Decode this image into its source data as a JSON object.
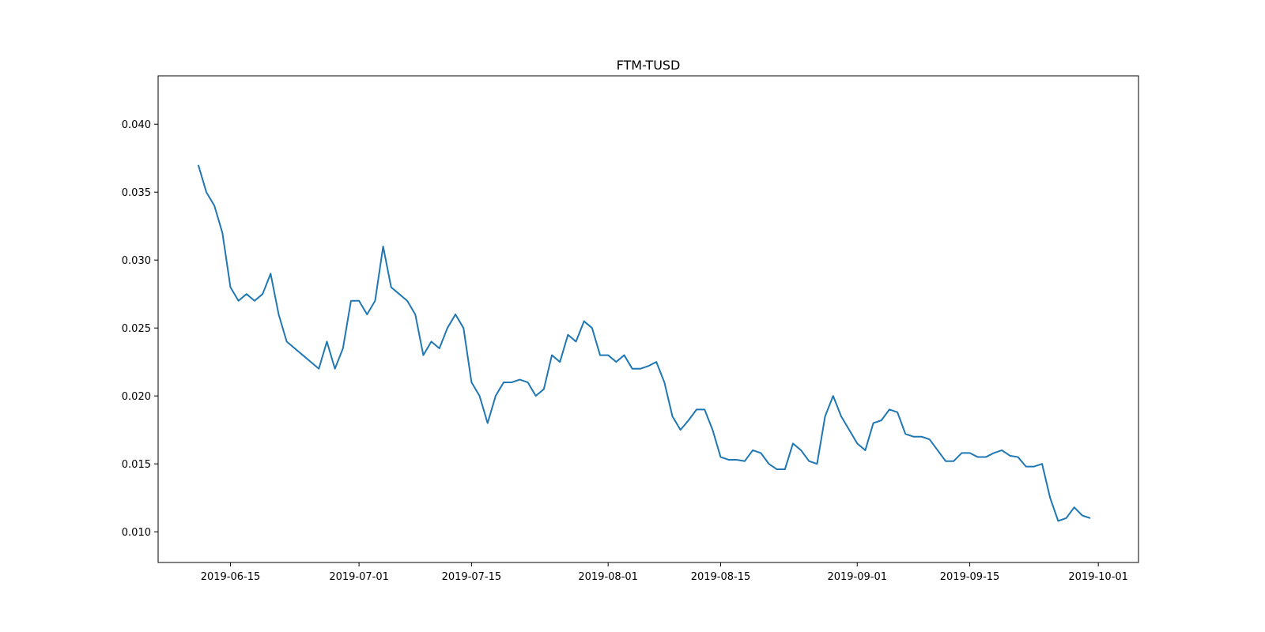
{
  "chart_data": {
    "type": "line",
    "title": "FTM-TUSD",
    "x": [
      "2019-06-11",
      "2019-06-12",
      "2019-06-13",
      "2019-06-14",
      "2019-06-15",
      "2019-06-16",
      "2019-06-17",
      "2019-06-18",
      "2019-06-19",
      "2019-06-20",
      "2019-06-21",
      "2019-06-22",
      "2019-06-23",
      "2019-06-24",
      "2019-06-25",
      "2019-06-26",
      "2019-06-27",
      "2019-06-28",
      "2019-06-29",
      "2019-06-30",
      "2019-07-01",
      "2019-07-02",
      "2019-07-03",
      "2019-07-04",
      "2019-07-05",
      "2019-07-06",
      "2019-07-07",
      "2019-07-08",
      "2019-07-09",
      "2019-07-10",
      "2019-07-11",
      "2019-07-12",
      "2019-07-13",
      "2019-07-14",
      "2019-07-15",
      "2019-07-16",
      "2019-07-17",
      "2019-07-18",
      "2019-07-19",
      "2019-07-20",
      "2019-07-21",
      "2019-07-22",
      "2019-07-23",
      "2019-07-24",
      "2019-07-25",
      "2019-07-26",
      "2019-07-27",
      "2019-07-28",
      "2019-07-29",
      "2019-07-30",
      "2019-07-31",
      "2019-08-01",
      "2019-08-02",
      "2019-08-03",
      "2019-08-04",
      "2019-08-05",
      "2019-08-06",
      "2019-08-07",
      "2019-08-08",
      "2019-08-09",
      "2019-08-10",
      "2019-08-11",
      "2019-08-12",
      "2019-08-13",
      "2019-08-14",
      "2019-08-15",
      "2019-08-16",
      "2019-08-17",
      "2019-08-18",
      "2019-08-19",
      "2019-08-20",
      "2019-08-21",
      "2019-08-22",
      "2019-08-23",
      "2019-08-24",
      "2019-08-25",
      "2019-08-26",
      "2019-08-27",
      "2019-08-28",
      "2019-08-29",
      "2019-08-30",
      "2019-08-31",
      "2019-09-01",
      "2019-09-02",
      "2019-09-03",
      "2019-09-04",
      "2019-09-05",
      "2019-09-06",
      "2019-09-07",
      "2019-09-08",
      "2019-09-09",
      "2019-09-10",
      "2019-09-11",
      "2019-09-12",
      "2019-09-13",
      "2019-09-14",
      "2019-09-15",
      "2019-09-16",
      "2019-09-17",
      "2019-09-18",
      "2019-09-19",
      "2019-09-20",
      "2019-09-21",
      "2019-09-22",
      "2019-09-23",
      "2019-09-24",
      "2019-09-25",
      "2019-09-26",
      "2019-09-27",
      "2019-09-28",
      "2019-09-29",
      "2019-09-30"
    ],
    "series": [
      {
        "name": "FTM-TUSD",
        "color": "#1f77b4",
        "values": [
          0.037,
          0.035,
          0.034,
          0.032,
          0.028,
          0.027,
          0.0275,
          0.027,
          0.0275,
          0.029,
          0.026,
          0.024,
          0.0235,
          0.023,
          0.0225,
          0.022,
          0.024,
          0.022,
          0.0235,
          0.027,
          0.027,
          0.026,
          0.027,
          0.031,
          0.028,
          0.0275,
          0.027,
          0.026,
          0.023,
          0.024,
          0.0235,
          0.025,
          0.026,
          0.025,
          0.021,
          0.02,
          0.018,
          0.02,
          0.021,
          0.021,
          0.0212,
          0.021,
          0.02,
          0.0205,
          0.023,
          0.0225,
          0.0245,
          0.024,
          0.0255,
          0.025,
          0.023,
          0.023,
          0.0225,
          0.023,
          0.022,
          0.022,
          0.0222,
          0.0225,
          0.021,
          0.0185,
          0.0175,
          0.0182,
          0.019,
          0.019,
          0.0175,
          0.0155,
          0.0153,
          0.0153,
          0.0152,
          0.016,
          0.0158,
          0.015,
          0.0146,
          0.0146,
          0.0165,
          0.016,
          0.0152,
          0.015,
          0.0185,
          0.02,
          0.0185,
          0.0175,
          0.0165,
          0.016,
          0.018,
          0.0182,
          0.019,
          0.0188,
          0.0172,
          0.017,
          0.017,
          0.0168,
          0.016,
          0.0152,
          0.0152,
          0.0158,
          0.0158,
          0.0155,
          0.0155,
          0.0158,
          0.016,
          0.0156,
          0.0155,
          0.0148,
          0.0148,
          0.015,
          0.0125,
          0.0108,
          0.011,
          0.0118,
          0.0112,
          0.011
        ]
      }
    ],
    "xlim": [
      "2019-06-06",
      "2019-10-06"
    ],
    "xticks": [
      "2019-06-15",
      "2019-07-01",
      "2019-07-15",
      "2019-08-01",
      "2019-08-15",
      "2019-09-01",
      "2019-09-15",
      "2019-10-01"
    ],
    "ylim": [
      0.00774,
      0.04356
    ],
    "yticks": [
      {
        "value": 0.01,
        "label": "0.010"
      },
      0.015,
      {
        "value": 0.02,
        "label": "0.020"
      },
      0.025,
      {
        "value": 0.03,
        "label": "0.030"
      },
      0.035,
      {
        "value": 0.04,
        "label": "0.040"
      }
    ],
    "grid": false
  }
}
